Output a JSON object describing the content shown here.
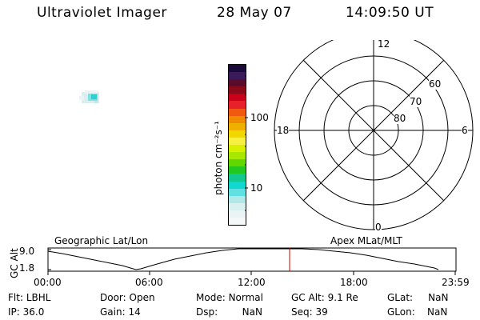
{
  "header": {
    "title": "Ultraviolet Imager",
    "date": "28 May 07",
    "time": "14:09:50 UT"
  },
  "colorbar": {
    "unit_label": "photon cm⁻²s⁻¹",
    "tick_100": "100",
    "tick_10": "10",
    "colors": [
      "#1a0a3a",
      "#3a1a5a",
      "#5a0a2a",
      "#8a0a1a",
      "#c8001a",
      "#e8202a",
      "#f05a10",
      "#f08a00",
      "#f0b000",
      "#f0d800",
      "#f8f040",
      "#d8f000",
      "#a8e800",
      "#60d800",
      "#20c820",
      "#10c890",
      "#10d8d0",
      "#60e0e0",
      "#b0e8e8",
      "#d8f0f0",
      "#eaf4f4",
      "#f4f8f8"
    ],
    "colors_note": ""
  },
  "polar": {
    "mlt_top": "12",
    "mlt_bottom": "0",
    "mlt_left": "18",
    "mlt_right": "6",
    "lat_60": "60",
    "lat_70": "70",
    "lat_80": "80"
  },
  "timeline": {
    "left_label": "Geographic Lat/Lon",
    "right_label": "Apex MLat/MLT",
    "y_axis_label": "GC Alt",
    "y_top": "9.0",
    "y_bottom": "1.8",
    "x_ticks": [
      "00:00",
      "06:00",
      "12:00",
      "18:00",
      "23:59"
    ],
    "marker_color": "#d00000"
  },
  "info": {
    "flt_label": "Flt:",
    "flt_value": "LBHL",
    "ip_label": "IP:",
    "ip_value": "36.0",
    "door_label": "Door:",
    "door_value": "Open",
    "gain_label": "Gain:",
    "gain_value": "14",
    "mode_label": "Mode:",
    "mode_value": "Normal",
    "dsp_label": "Dsp:",
    "dsp_value": "NaN",
    "gcalt_label": "GC Alt:",
    "gcalt_value": "9.1 Re",
    "seq_label": "Seq:",
    "seq_value": "39",
    "glat_label": "GLat:",
    "glat_value": "NaN",
    "glon_label": "GLon:",
    "glon_value": "NaN"
  }
}
